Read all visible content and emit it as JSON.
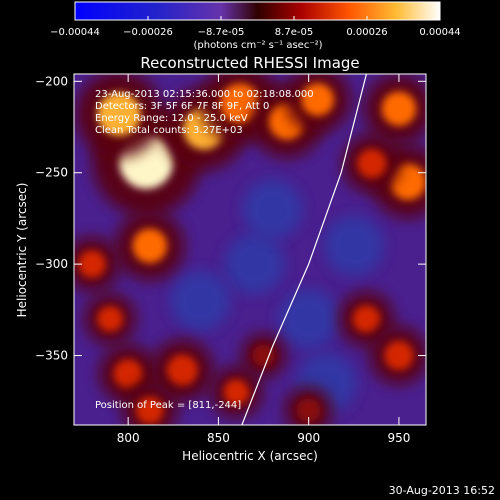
{
  "chart_data": {
    "type": "heatmap",
    "title": "Reconstructed RHESSI Image",
    "xlabel": "Heliocentric X (arcsec)",
    "ylabel": "Heliocentric Y (arcsec)",
    "xlim": [
      770,
      965
    ],
    "ylim": [
      -388,
      -196
    ],
    "x_ticks": [
      800,
      850,
      900,
      950
    ],
    "y_ticks": [
      -200,
      -250,
      -300,
      -350
    ],
    "colorbar": {
      "ticks": [
        "-0.00044",
        "-0.00026",
        "-8.7e-05",
        "8.7e-05",
        "0.00026",
        "0.00044"
      ],
      "unit_label": "(photons cm⁻² s⁻¹ asec⁻²)",
      "range": [
        -0.00044,
        0.00044
      ]
    },
    "annotations": [
      "23-Aug-2013 02:15:36.000 to 02:18:08.000",
      "Detectors: 3F 5F 6F 7F 8F 9F, Att 0",
      "Energy Range: 12.0 - 25.0 keV",
      "Clean    Total counts: 3.27E+03"
    ],
    "peak_label": "Position of Peak = [811,-244]",
    "limb_curve": {
      "x": [
        863,
        880,
        900,
        918,
        932
      ],
      "y": [
        -388,
        -345,
        -300,
        -250,
        -196
      ]
    },
    "hot_spots": [
      {
        "x": 810,
        "y": -244,
        "value": 0.00044
      },
      {
        "x": 795,
        "y": -218,
        "value": 0.00032
      },
      {
        "x": 842,
        "y": -226,
        "value": 0.0003
      },
      {
        "x": 862,
        "y": -212,
        "value": 0.00028
      },
      {
        "x": 888,
        "y": -222,
        "value": 0.00024
      },
      {
        "x": 905,
        "y": -210,
        "value": 0.0002
      },
      {
        "x": 950,
        "y": -215,
        "value": 0.00022
      },
      {
        "x": 955,
        "y": -255,
        "value": 0.00024
      },
      {
        "x": 935,
        "y": -245,
        "value": 0.00016
      },
      {
        "x": 812,
        "y": -290,
        "value": 0.00022
      },
      {
        "x": 780,
        "y": -300,
        "value": 0.00014
      },
      {
        "x": 790,
        "y": -330,
        "value": 0.00012
      },
      {
        "x": 800,
        "y": -360,
        "value": 0.00016
      },
      {
        "x": 830,
        "y": -358,
        "value": 0.00018
      },
      {
        "x": 812,
        "y": -380,
        "value": 0.00014
      },
      {
        "x": 860,
        "y": -370,
        "value": 0.00012
      },
      {
        "x": 932,
        "y": -330,
        "value": 0.00014
      },
      {
        "x": 950,
        "y": -350,
        "value": 0.00016
      },
      {
        "x": 900,
        "y": -380,
        "value": 0.0001
      },
      {
        "x": 875,
        "y": -350,
        "value": 8e-05
      }
    ],
    "cold_spots": [
      {
        "x": 900,
        "y": -330,
        "value": -0.0001
      },
      {
        "x": 870,
        "y": -300,
        "value": -8e-05
      },
      {
        "x": 840,
        "y": -320,
        "value": -9e-05
      },
      {
        "x": 925,
        "y": -290,
        "value": -9e-05
      },
      {
        "x": 880,
        "y": -270,
        "value": -7e-05
      },
      {
        "x": 910,
        "y": -365,
        "value": -8e-05
      }
    ]
  },
  "footer": {
    "timestamp": "30-Aug-2013 16:52"
  }
}
